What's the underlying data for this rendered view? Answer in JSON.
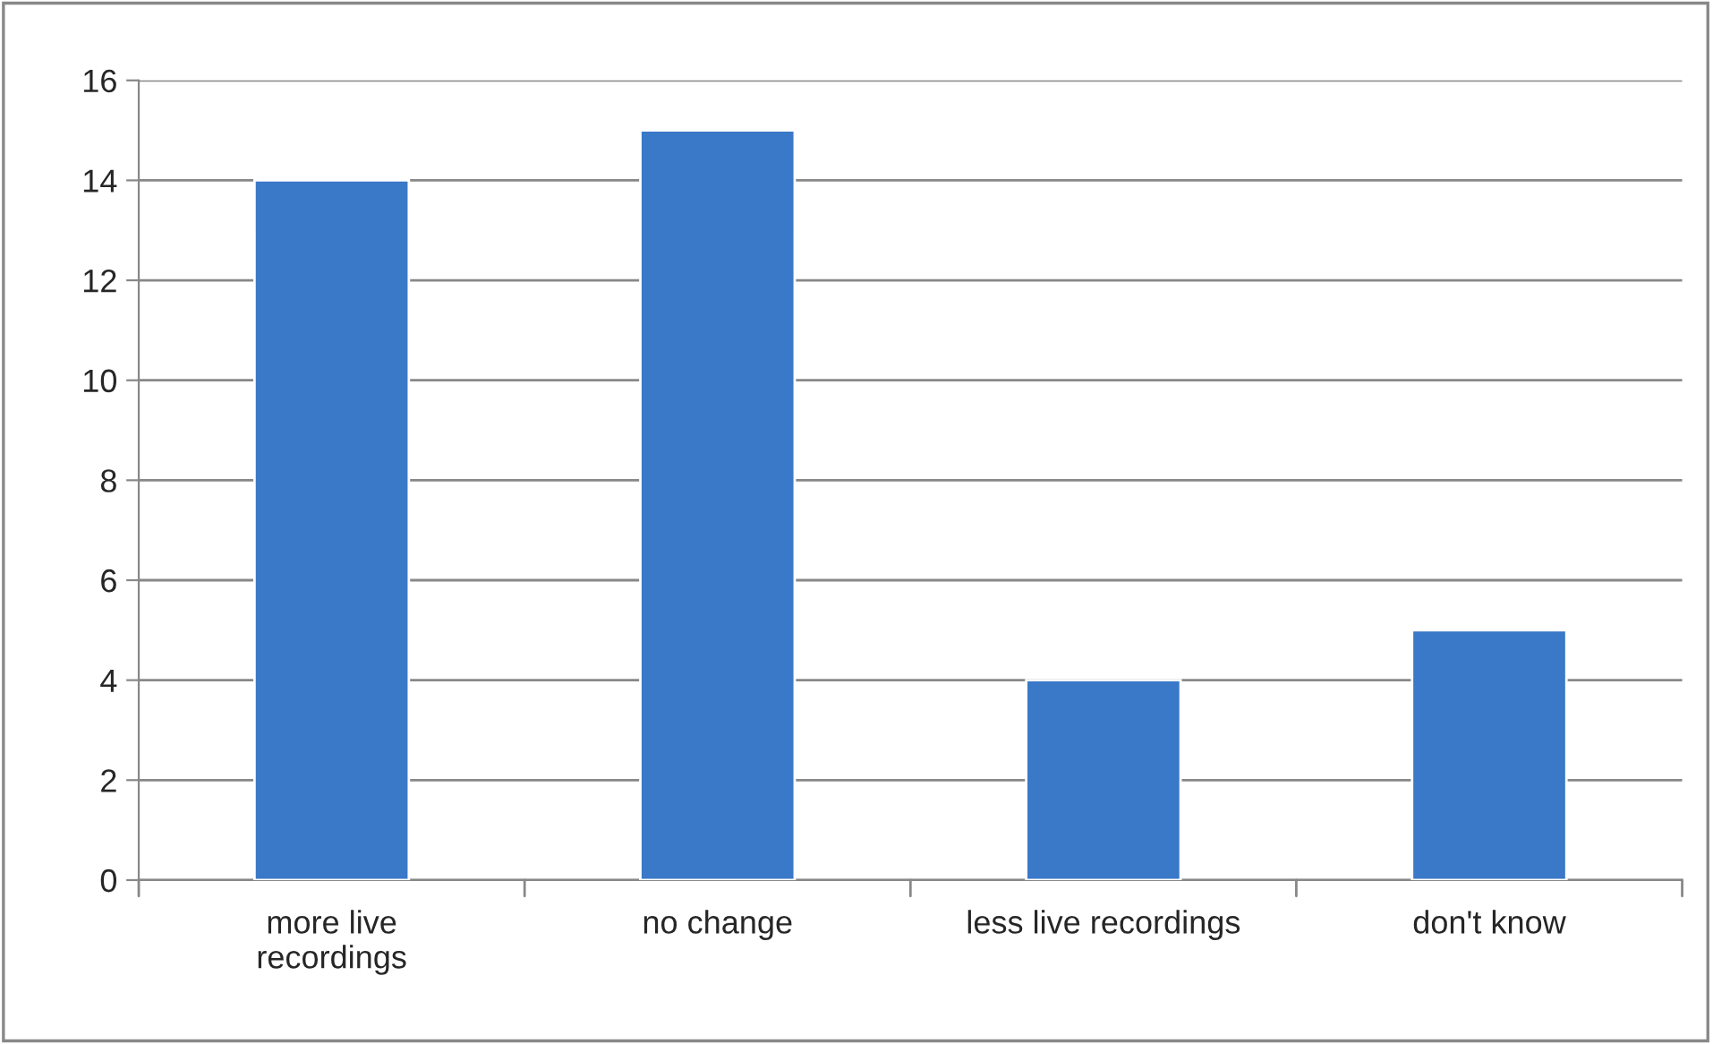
{
  "chart_data": {
    "type": "bar",
    "categories": [
      "more live\nrecordings",
      "no change",
      "less live recordings",
      "don't know"
    ],
    "values": [
      14,
      15,
      4,
      5
    ],
    "color": "#3a78c8",
    "ylim": [
      0,
      16
    ],
    "yticks": [
      0,
      2,
      4,
      6,
      8,
      10,
      12,
      14,
      16
    ],
    "grid": "y",
    "legend": false
  }
}
